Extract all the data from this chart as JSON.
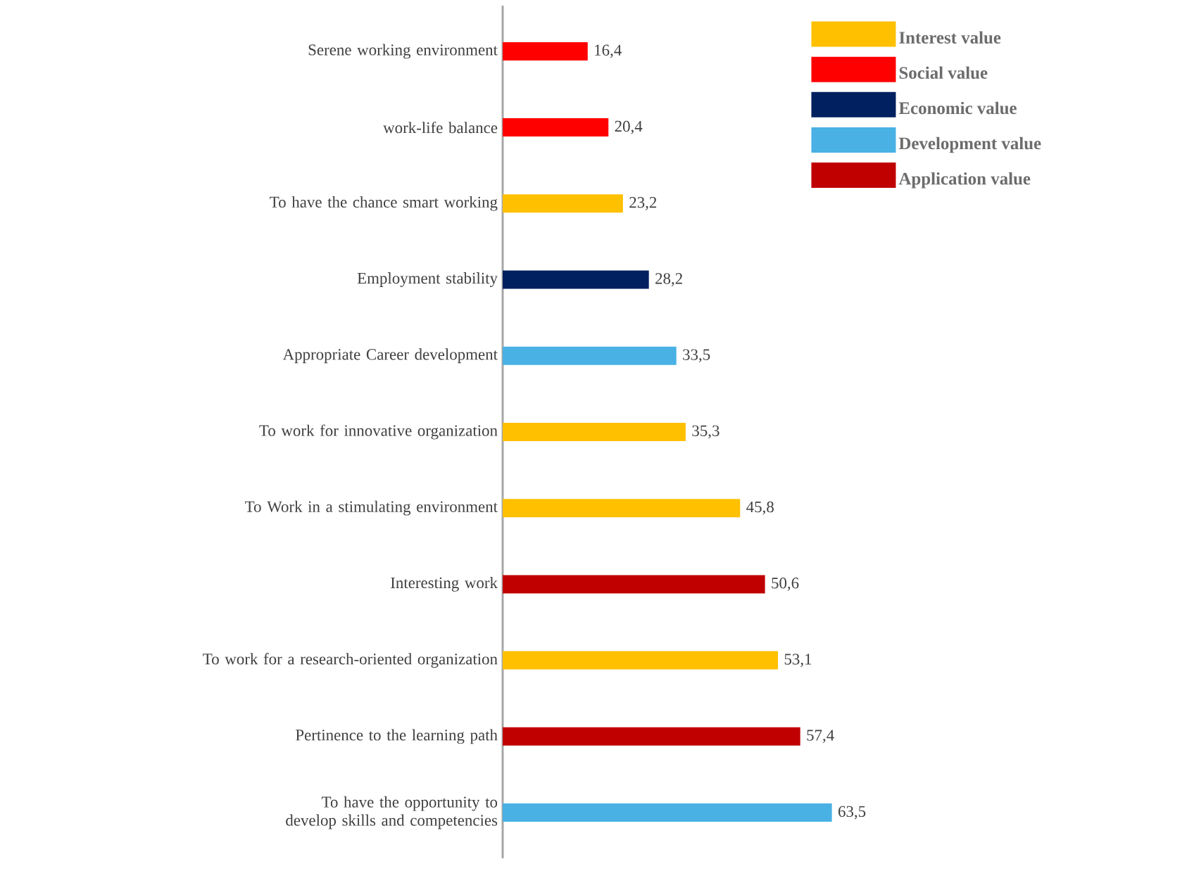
{
  "chart_data": {
    "type": "bar",
    "orientation": "horizontal",
    "legend": "top right",
    "categories": [
      "Serene working environment",
      "work-life balance",
      "To have the chance smart working",
      "Employment stability",
      "Appropriate Career development",
      "To work for innovative organization",
      "To Work in a stimulating environment",
      "Interesting work",
      "To work for a research-oriented organization",
      "Pertinence to the learning path",
      "To have the opportunity to develop skills and competencies"
    ],
    "series": [
      {
        "name": "Interest value",
        "color": "#ffc000",
        "values": [
          null,
          null,
          23.2,
          null,
          null,
          35.3,
          45.8,
          null,
          53.1,
          null,
          null
        ],
        "value_labels": [
          null,
          null,
          "23,2",
          null,
          null,
          "35,3",
          "45,8",
          null,
          "53,1",
          null,
          null
        ]
      },
      {
        "name": "Social value",
        "color": "#ff0000",
        "values": [
          16.4,
          20.4,
          null,
          null,
          null,
          null,
          null,
          null,
          null,
          null,
          null
        ],
        "value_labels": [
          "16,4",
          "20,4",
          null,
          null,
          null,
          null,
          null,
          null,
          null,
          null,
          null
        ]
      },
      {
        "name": "Economic value",
        "color": "#002060",
        "values": [
          null,
          null,
          null,
          28.2,
          null,
          null,
          null,
          null,
          null,
          null,
          null
        ],
        "value_labels": [
          null,
          null,
          null,
          "28,2",
          null,
          null,
          null,
          null,
          null,
          null,
          null
        ]
      },
      {
        "name": "Development value",
        "color": "#49b1e4",
        "values": [
          null,
          null,
          null,
          null,
          33.5,
          null,
          null,
          null,
          null,
          null,
          63.5
        ],
        "value_labels": [
          null,
          null,
          null,
          null,
          "33,5",
          null,
          null,
          null,
          null,
          null,
          "63,5"
        ]
      },
      {
        "name": "Application value",
        "color": "#c00000",
        "values": [
          null,
          null,
          null,
          null,
          null,
          null,
          null,
          50.6,
          null,
          57.4,
          null
        ],
        "value_labels": [
          null,
          null,
          null,
          null,
          null,
          null,
          null,
          "50,6",
          null,
          "57,4",
          null
        ]
      }
    ]
  }
}
